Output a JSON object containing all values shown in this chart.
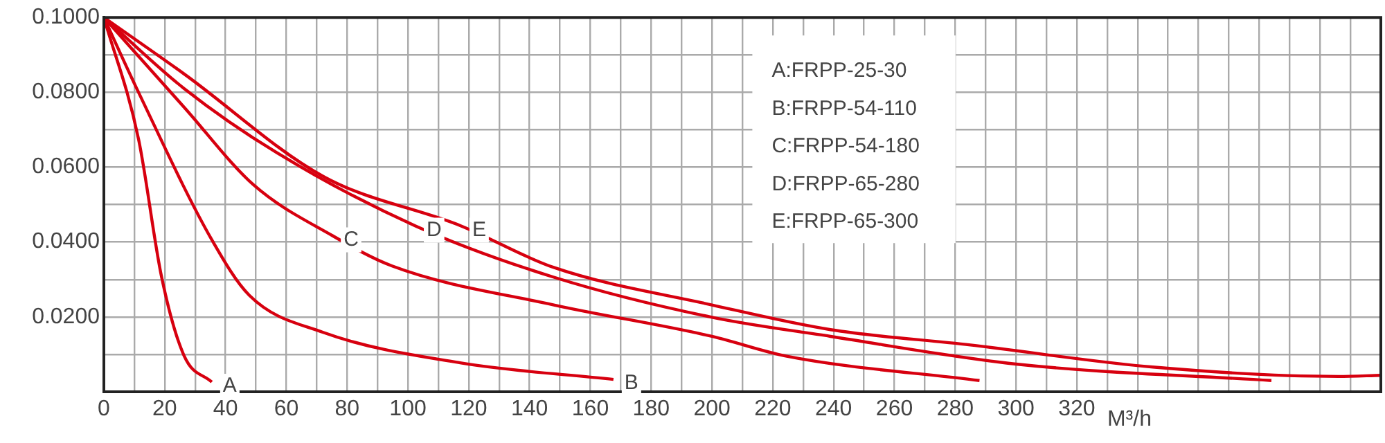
{
  "chart_data": {
    "type": "line",
    "xlabel": "M³/h",
    "xlim": [
      0,
      420
    ],
    "xticks": [
      0,
      {
        "value": 10,
        "label": null
      },
      20,
      {
        "value": 30,
        "label": null
      },
      40,
      {
        "value": 50,
        "label": null
      },
      60,
      {
        "value": 70,
        "label": null
      },
      80,
      {
        "value": 90,
        "label": null
      },
      100,
      {
        "value": 110,
        "label": null
      },
      120,
      {
        "value": 130,
        "label": null
      },
      140,
      {
        "value": 150,
        "label": null
      },
      160,
      {
        "value": 170,
        "label": null
      },
      180,
      {
        "value": 190,
        "label": null
      },
      200,
      {
        "value": 210,
        "label": null
      },
      220,
      {
        "value": 230,
        "label": null
      },
      240,
      {
        "value": 250,
        "label": null
      },
      260,
      {
        "value": 270,
        "label": null
      },
      280,
      {
        "value": 290,
        "label": null
      },
      300,
      {
        "value": 310,
        "label": null
      },
      320,
      {
        "value": 330,
        "label": null
      },
      {
        "value": 340,
        "label": null
      },
      {
        "value": 350,
        "label": null
      },
      {
        "value": 360,
        "label": null
      },
      {
        "value": 370,
        "label": null
      },
      {
        "value": 380,
        "label": null
      },
      {
        "value": 390,
        "label": null
      },
      {
        "value": 400,
        "label": null
      },
      {
        "value": 410,
        "label": null
      }
    ],
    "ylim": [
      0,
      0.1
    ],
    "yticks": [
      {
        "value": 0.01,
        "label": null
      },
      {
        "value": 0.02,
        "label": "0.0200"
      },
      {
        "value": 0.03,
        "label": null
      },
      {
        "value": 0.04,
        "label": "0.0400"
      },
      {
        "value": 0.05,
        "label": null
      },
      {
        "value": 0.06,
        "label": "0.0600"
      },
      {
        "value": 0.07,
        "label": null
      },
      {
        "value": 0.08,
        "label": "0.0800"
      },
      {
        "value": 0.09,
        "label": null
      },
      {
        "value": 0.1,
        "label": "0.1000"
      }
    ],
    "grid": true,
    "legend": false,
    "marker": "none",
    "line_style": "solid",
    "series": [
      {
        "color": "#d7000f",
        "x": [
          0,
          11.4,
          19,
          26.4,
          35.5
        ],
        "values": [
          0.1,
          0.0675,
          0.0306,
          0.0096,
          0.0026
        ]
      },
      {
        "color": "#d7000f",
        "x": [
          0,
          11.4,
          35.5,
          47.8,
          72,
          117.5,
          167.6
        ],
        "values": [
          0.1,
          0.08,
          0.0406,
          0.0258,
          0.0159,
          0.0077,
          0.0033
        ]
      },
      {
        "color": "#d7000f",
        "x": [
          0,
          26.4,
          49.2,
          75.2,
          94.8,
          148,
          200,
          224,
          288
        ],
        "values": [
          0.1,
          0.076,
          0.0553,
          0.0417,
          0.0336,
          0.0232,
          0.0148,
          0.0096,
          0.003
        ]
      },
      {
        "color": "#d7000f",
        "x": [
          0,
          26.4,
          57,
          102.5,
          148,
          200,
          239,
          300,
          384
        ],
        "values": [
          0.1,
          0.081,
          0.0638,
          0.0443,
          0.0306,
          0.0199,
          0.0148,
          0.0074,
          0.003
        ]
      },
      {
        "color": "#d7000f",
        "x": [
          0,
          26.4,
          72,
          117.5,
          148,
          200,
          239,
          285,
          345,
          406,
          420
        ],
        "values": [
          0.1,
          0.0849,
          0.0576,
          0.0443,
          0.0332,
          0.0232,
          0.0166,
          0.0125,
          0.0066,
          0.0041,
          0.0044
        ]
      }
    ],
    "annotations": [
      {
        "text": "A",
        "x": 35.5,
        "y": 0.0026
      },
      {
        "text": "B",
        "x": 167.6,
        "y": 0.0033
      },
      {
        "text": "C",
        "x": 75.2,
        "y": 0.0417
      },
      {
        "text": "D",
        "x": 102.5,
        "y": 0.0443
      },
      {
        "text": "E",
        "x": 117.5,
        "y": 0.0443
      },
      "A:FRPP-25-30",
      "B:FRPP-54-110",
      "C:FRPP-54-180",
      "D:FRPP-65-280",
      "E:FRPP-65-300"
    ]
  }
}
